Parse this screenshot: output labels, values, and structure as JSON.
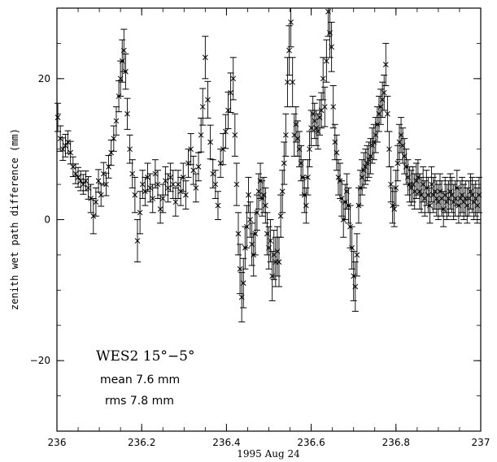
{
  "chart_data": {
    "type": "scatter",
    "title": "",
    "xlabel": "1995 Aug 24",
    "ylabel": "zenith wet path difference (mm)",
    "xlim": [
      236,
      237
    ],
    "ylim": [
      -30,
      30
    ],
    "x_ticks": [
      236,
      236.2,
      236.4,
      236.6,
      236.8,
      237
    ],
    "x_tick_labels": [
      "236",
      "236.2",
      "236.4",
      "236.6",
      "236.8",
      "237"
    ],
    "y_ticks": [
      -20,
      0,
      20
    ],
    "y_tick_labels": [
      "−20",
      "0",
      "20"
    ],
    "grid": false,
    "marker": "x",
    "error_bars": true,
    "annotations": [
      "WES2 15°−5°",
      "mean 7.6 mm",
      "rms 7.8 mm"
    ],
    "points": [
      [
        236.002,
        14.5,
        2.0
      ],
      [
        236.008,
        11.5,
        1.8
      ],
      [
        236.014,
        10.0,
        1.6
      ],
      [
        236.02,
        10.5,
        1.6
      ],
      [
        236.026,
        11.0,
        1.6
      ],
      [
        236.032,
        9.5,
        1.6
      ],
      [
        236.038,
        7.5,
        1.4
      ],
      [
        236.044,
        6.5,
        1.4
      ],
      [
        236.05,
        6.0,
        1.4
      ],
      [
        236.056,
        5.5,
        1.4
      ],
      [
        236.062,
        5.0,
        1.4
      ],
      [
        236.068,
        5.5,
        1.4
      ],
      [
        236.074,
        4.5,
        1.6
      ],
      [
        236.08,
        3.0,
        2.0
      ],
      [
        236.086,
        0.5,
        2.5
      ],
      [
        236.092,
        2.5,
        2.0
      ],
      [
        236.098,
        5.5,
        1.6
      ],
      [
        236.104,
        3.5,
        1.6
      ],
      [
        236.11,
        6.5,
        1.6
      ],
      [
        236.116,
        5.0,
        1.6
      ],
      [
        236.122,
        7.5,
        1.6
      ],
      [
        236.128,
        9.5,
        1.8
      ],
      [
        236.134,
        11.5,
        1.8
      ],
      [
        236.14,
        14.0,
        2.0
      ],
      [
        236.146,
        17.5,
        2.2
      ],
      [
        236.15,
        20.0,
        2.5
      ],
      [
        236.154,
        22.5,
        3.0
      ],
      [
        236.158,
        24.0,
        3.0
      ],
      [
        236.162,
        21.0,
        2.5
      ],
      [
        236.166,
        15.0,
        2.2
      ],
      [
        236.172,
        10.0,
        2.0
      ],
      [
        236.178,
        6.5,
        2.0
      ],
      [
        236.184,
        3.5,
        2.5
      ],
      [
        236.19,
        -3.0,
        3.0
      ],
      [
        236.196,
        1.0,
        3.0
      ],
      [
        236.202,
        5.0,
        2.0
      ],
      [
        236.208,
        4.0,
        2.0
      ],
      [
        236.214,
        6.0,
        2.0
      ],
      [
        236.22,
        4.5,
        2.0
      ],
      [
        236.226,
        3.0,
        2.0
      ],
      [
        236.232,
        6.5,
        2.0
      ],
      [
        236.238,
        5.0,
        2.0
      ],
      [
        236.244,
        1.5,
        2.0
      ],
      [
        236.25,
        3.0,
        2.0
      ],
      [
        236.256,
        5.5,
        2.0
      ],
      [
        236.262,
        4.5,
        2.0
      ],
      [
        236.268,
        6.0,
        2.0
      ],
      [
        236.274,
        5.0,
        2.0
      ],
      [
        236.28,
        2.5,
        2.0
      ],
      [
        236.286,
        5.0,
        2.0
      ],
      [
        236.292,
        4.0,
        2.0
      ],
      [
        236.298,
        6.0,
        2.0
      ],
      [
        236.304,
        3.5,
        2.0
      ],
      [
        236.31,
        8.0,
        2.0
      ],
      [
        236.316,
        10.0,
        2.2
      ],
      [
        236.322,
        7.0,
        2.0
      ],
      [
        236.328,
        4.5,
        2.0
      ],
      [
        236.334,
        7.5,
        2.0
      ],
      [
        236.34,
        12.0,
        2.4
      ],
      [
        236.344,
        16.0,
        2.6
      ],
      [
        236.35,
        23.0,
        3.0
      ],
      [
        236.356,
        17.0,
        2.6
      ],
      [
        236.362,
        11.0,
        2.4
      ],
      [
        236.368,
        6.5,
        2.0
      ],
      [
        236.374,
        5.0,
        2.0
      ],
      [
        236.38,
        2.0,
        2.0
      ],
      [
        236.386,
        8.0,
        2.0
      ],
      [
        236.392,
        10.0,
        2.2
      ],
      [
        236.398,
        12.5,
        2.4
      ],
      [
        236.404,
        15.5,
        2.6
      ],
      [
        236.41,
        18.0,
        2.8
      ],
      [
        236.416,
        20.0,
        3.0
      ],
      [
        236.42,
        12.0,
        3.0
      ],
      [
        236.424,
        5.0,
        3.0
      ],
      [
        236.428,
        -2.0,
        3.0
      ],
      [
        236.432,
        -7.0,
        3.5
      ],
      [
        236.436,
        -11.0,
        3.5
      ],
      [
        236.44,
        -9.0,
        3.5
      ],
      [
        236.444,
        -4.0,
        3.0
      ],
      [
        236.448,
        -1.0,
        3.0
      ],
      [
        236.452,
        3.5,
        2.5
      ],
      [
        236.456,
        0.0,
        2.5
      ],
      [
        236.46,
        -3.5,
        3.0
      ],
      [
        236.464,
        -5.0,
        3.0
      ],
      [
        236.468,
        -2.0,
        3.0
      ],
      [
        236.472,
        1.0,
        2.5
      ],
      [
        236.476,
        4.0,
        2.5
      ],
      [
        236.48,
        5.5,
        2.5
      ],
      [
        236.484,
        3.0,
        2.5
      ],
      [
        236.488,
        3.5,
        2.5
      ],
      [
        236.492,
        2.0,
        2.5
      ],
      [
        236.496,
        -2.0,
        3.0
      ],
      [
        236.5,
        -4.0,
        3.0
      ],
      [
        236.504,
        -3.0,
        3.0
      ],
      [
        236.508,
        -8.0,
        3.5
      ],
      [
        236.512,
        -5.0,
        3.5
      ],
      [
        236.516,
        -6.0,
        3.5
      ],
      [
        236.52,
        -4.5,
        3.5
      ],
      [
        236.524,
        -6.0,
        3.5
      ],
      [
        236.528,
        0.5,
        3.0
      ],
      [
        236.532,
        4.0,
        3.0
      ],
      [
        236.536,
        8.0,
        3.0
      ],
      [
        236.54,
        12.0,
        3.0
      ],
      [
        236.544,
        19.5,
        3.5
      ],
      [
        236.548,
        24.0,
        3.5
      ],
      [
        236.552,
        28.0,
        3.5
      ],
      [
        236.556,
        19.5,
        3.5
      ],
      [
        236.56,
        12.0,
        3.0
      ],
      [
        236.564,
        13.5,
        2.5
      ],
      [
        236.568,
        11.5,
        2.5
      ],
      [
        236.572,
        10.0,
        2.5
      ],
      [
        236.576,
        8.0,
        2.5
      ],
      [
        236.58,
        6.0,
        2.5
      ],
      [
        236.584,
        3.5,
        2.5
      ],
      [
        236.588,
        2.0,
        2.5
      ],
      [
        236.592,
        6.0,
        2.5
      ],
      [
        236.596,
        10.0,
        2.5
      ],
      [
        236.6,
        13.0,
        2.5
      ],
      [
        236.604,
        15.0,
        2.5
      ],
      [
        236.608,
        14.0,
        2.5
      ],
      [
        236.612,
        13.0,
        2.5
      ],
      [
        236.616,
        12.5,
        2.5
      ],
      [
        236.62,
        14.5,
        2.5
      ],
      [
        236.624,
        15.5,
        2.5
      ],
      [
        236.628,
        20.0,
        3.0
      ],
      [
        236.632,
        16.0,
        2.8
      ],
      [
        236.636,
        22.5,
        3.0
      ],
      [
        236.64,
        29.5,
        3.5
      ],
      [
        236.644,
        26.5,
        3.5
      ],
      [
        236.648,
        24.5,
        3.5
      ],
      [
        236.652,
        16.0,
        3.0
      ],
      [
        236.656,
        11.0,
        2.5
      ],
      [
        236.66,
        9.5,
        2.5
      ],
      [
        236.664,
        6.0,
        2.5
      ],
      [
        236.668,
        5.5,
        2.5
      ],
      [
        236.672,
        3.0,
        2.5
      ],
      [
        236.676,
        0.0,
        2.5
      ],
      [
        236.68,
        2.5,
        2.5
      ],
      [
        236.684,
        4.0,
        2.5
      ],
      [
        236.688,
        2.0,
        2.5
      ],
      [
        236.692,
        -1.0,
        3.0
      ],
      [
        236.696,
        -4.0,
        3.0
      ],
      [
        236.7,
        -8.0,
        3.5
      ],
      [
        236.704,
        -9.5,
        3.5
      ],
      [
        236.708,
        -5.0,
        3.0
      ],
      [
        236.712,
        2.0,
        2.5
      ],
      [
        236.716,
        4.5,
        2.5
      ],
      [
        236.72,
        6.0,
        2.5
      ],
      [
        236.724,
        7.0,
        2.5
      ],
      [
        236.728,
        7.5,
        2.5
      ],
      [
        236.732,
        8.0,
        2.5
      ],
      [
        236.736,
        8.5,
        2.5
      ],
      [
        236.74,
        9.0,
        2.5
      ],
      [
        236.744,
        10.5,
        2.5
      ],
      [
        236.748,
        11.0,
        2.5
      ],
      [
        236.752,
        12.0,
        2.5
      ],
      [
        236.756,
        13.5,
        2.5
      ],
      [
        236.76,
        15.0,
        2.5
      ],
      [
        236.764,
        16.0,
        2.5
      ],
      [
        236.768,
        17.0,
        2.5
      ],
      [
        236.772,
        18.0,
        2.5
      ],
      [
        236.776,
        22.0,
        3.0
      ],
      [
        236.78,
        15.0,
        2.5
      ],
      [
        236.784,
        10.0,
        2.5
      ],
      [
        236.788,
        5.0,
        2.5
      ],
      [
        236.792,
        2.0,
        2.5
      ],
      [
        236.796,
        1.5,
        2.5
      ],
      [
        236.8,
        4.5,
        2.5
      ],
      [
        236.804,
        8.0,
        2.5
      ],
      [
        236.808,
        11.0,
        2.5
      ],
      [
        236.812,
        12.0,
        2.5
      ],
      [
        236.816,
        10.5,
        2.5
      ],
      [
        236.82,
        9.0,
        2.5
      ],
      [
        236.824,
        7.5,
        2.5
      ],
      [
        236.828,
        6.0,
        2.5
      ],
      [
        236.832,
        5.0,
        2.5
      ],
      [
        236.836,
        4.5,
        2.5
      ],
      [
        236.84,
        5.0,
        2.5
      ],
      [
        236.844,
        4.0,
        2.5
      ],
      [
        236.848,
        5.5,
        2.5
      ],
      [
        236.852,
        6.0,
        2.5
      ],
      [
        236.856,
        4.0,
        2.5
      ],
      [
        236.86,
        3.5,
        2.5
      ],
      [
        236.864,
        5.0,
        2.5
      ],
      [
        236.868,
        3.0,
        2.5
      ],
      [
        236.872,
        4.5,
        2.5
      ],
      [
        236.876,
        3.5,
        2.5
      ],
      [
        236.88,
        2.0,
        2.5
      ],
      [
        236.884,
        5.0,
        2.5
      ],
      [
        236.888,
        3.5,
        2.5
      ],
      [
        236.892,
        4.0,
        2.5
      ],
      [
        236.896,
        3.0,
        2.5
      ],
      [
        236.9,
        2.5,
        2.5
      ],
      [
        236.904,
        4.0,
        2.5
      ],
      [
        236.908,
        3.0,
        2.5
      ],
      [
        236.912,
        1.5,
        2.5
      ],
      [
        236.916,
        3.5,
        2.5
      ],
      [
        236.92,
        2.5,
        2.5
      ],
      [
        236.924,
        3.0,
        2.5
      ],
      [
        236.928,
        4.0,
        2.5
      ],
      [
        236.932,
        3.5,
        2.5
      ],
      [
        236.936,
        2.5,
        2.5
      ],
      [
        236.94,
        3.0,
        2.5
      ],
      [
        236.944,
        4.5,
        2.5
      ],
      [
        236.948,
        2.0,
        2.5
      ],
      [
        236.952,
        3.0,
        2.5
      ],
      [
        236.956,
        3.5,
        2.5
      ],
      [
        236.96,
        2.5,
        2.5
      ],
      [
        236.964,
        3.0,
        2.5
      ],
      [
        236.968,
        2.0,
        2.5
      ],
      [
        236.972,
        3.0,
        2.5
      ],
      [
        236.976,
        4.0,
        2.5
      ],
      [
        236.98,
        3.5,
        2.5
      ],
      [
        236.984,
        2.5,
        2.5
      ],
      [
        236.988,
        3.0,
        2.5
      ],
      [
        236.992,
        2.0,
        2.5
      ],
      [
        236.996,
        3.5,
        2.5
      ]
    ]
  }
}
